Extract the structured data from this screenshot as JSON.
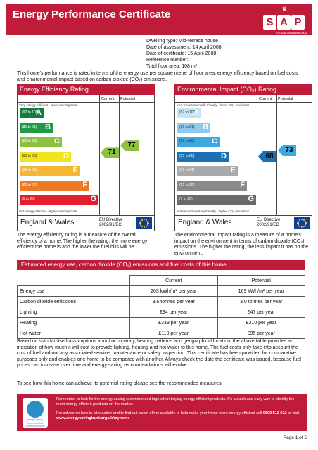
{
  "header": {
    "title": "Energy Performance Certificate",
    "logo_letters": [
      "S",
      "A",
      "P"
    ],
    "crown": "♛",
    "copyright": "© Crown copyright 2003"
  },
  "property": {
    "dwelling_type": "Dwelling type: Mid-terrace house",
    "assessment_date": "Date of assessment: 14 April 2008",
    "certificate_date": "Date of certificate: 15 April 2008",
    "reference": "Reference number:",
    "floor_area": "Total floor area: 108 m²"
  },
  "intro": "This home's performance is rated in terms of the energy use per square metre of floor area, energy efficiency based on fuel costs and environmental impact based on carbon dioxide (CO₂) emissions.",
  "efficiency": {
    "title": "Energy Efficiency Rating",
    "col_current": "Current",
    "col_potential": "Potential",
    "top_note": "Very energy efficient - lower running costs",
    "bottom_note": "Not energy efficient - higher running costs",
    "bands": [
      {
        "range": "(92 to 100)",
        "letter": "A",
        "color": "#0f7b3e"
      },
      {
        "range": "(81 to 91)",
        "letter": "B",
        "color": "#1e9b44"
      },
      {
        "range": "(69 to 80)",
        "letter": "C",
        "color": "#8dc23f"
      },
      {
        "range": "(55 to 68)",
        "letter": "D",
        "color": "#f0e51a"
      },
      {
        "range": "(39 to 54)",
        "letter": "E",
        "color": "#f6b533"
      },
      {
        "range": "(21 to 38)",
        "letter": "F",
        "color": "#ec7b25"
      },
      {
        "range": "(1 to 20)",
        "letter": "G",
        "color": "#e31d2d"
      }
    ],
    "current": 71,
    "potential": 77,
    "current_color": "#8dc23f",
    "potential_color": "#8dc23f",
    "region": "England & Wales",
    "directive": "EU Directive",
    "directive_code": "2002/91/EC",
    "description": "The energy efficiency rating is a measure of the overall efficiency of a home. The higher the rating, the more energy efficient the home is and the lower the fuel bills will be."
  },
  "environment": {
    "title": "Environmental Impact (CO₂) Rating",
    "col_current": "Current",
    "col_potential": "Potential",
    "top_note": "Very environmentally friendly - lower CO₂ emissions",
    "bottom_note": "Not environmentally friendly - higher CO₂ emissions",
    "bands": [
      {
        "range": "(92 to 100)",
        "letter": "A",
        "color": "#c5e4f6"
      },
      {
        "range": "(81 to 91)",
        "letter": "B",
        "color": "#8fc9ec"
      },
      {
        "range": "(69 to 80)",
        "letter": "C",
        "color": "#3ea8e0"
      },
      {
        "range": "(55 to 68)",
        "letter": "D",
        "color": "#1a72b4"
      },
      {
        "range": "(39 to 54)",
        "letter": "E",
        "color": "#a9a9a9"
      },
      {
        "range": "(21 to 38)",
        "letter": "F",
        "color": "#8a8a8a"
      },
      {
        "range": "(1 to 20)",
        "letter": "G",
        "color": "#6a6a6a"
      }
    ],
    "current": 68,
    "potential": 73,
    "current_color": "#1a72b4",
    "potential_color": "#3ea8e0",
    "region": "England & Wales",
    "directive": "EU Directive",
    "directive_code": "2002/91/EC",
    "description": "The environmental impact rating is a measure of a home's impact on the environment in terms of carbon dioxide (CO₂) emissions. The higher the rating, the less impact it has on the environment."
  },
  "costs": {
    "title": "Estimated energy use, carbon dioxide (CO₂) emissions and fuel costs of this home",
    "col_current": "Current",
    "col_potential": "Potential",
    "rows": [
      {
        "label": "Energy use",
        "current": "203 kWh/m² per year",
        "potential": "169 kWh/m² per year"
      },
      {
        "label": "Carbon dioxide emissions",
        "current": "3.6 tonnes per year",
        "potential": "3.0 tonnes per year"
      },
      {
        "label": "Lighting",
        "current": "£94 per year",
        "potential": "£47 per year"
      },
      {
        "label": "Heating",
        "current": "£339 per year",
        "potential": "£310 per year"
      },
      {
        "label": "Hot water",
        "current": "£110 per year",
        "potential": "£95 per year"
      }
    ]
  },
  "basis": "Based on standardised assumptions about occupancy, heating patterns and geographical location, the above table provides an indication of how much it will cost to provide lighting, heating and hot water to this home. The fuel costs only take into account the cost of fuel and not any associated service, maintenance or safety inspection. This certificate has been provided for comparative purposes only and enables one home to be compared with another. Always check the date the certificate was issued, because fuel prices can increase over time and energy saving recommendations will evolve.",
  "to_see": "To see how this home can achieve its potential rating please see the recommended measures.",
  "advice": {
    "badge_line1": "energy saving",
    "badge_line2": "recommended",
    "badge_line3": "Certification mark",
    "p1": "Remember to look for the energy saving recommended logo when buying energy efficient products. It's a quick and easy way to identify the most energy efficient products on the market.",
    "p2_pre": "For advice on how to take action and to find out about offers available to help make your home more energy efficient call ",
    "p2_phone": "0800 512 012",
    "p2_mid": " or visit ",
    "p2_url": "www.energysavingtrust.org.uk/myhome"
  },
  "page": "Page 1 of 5"
}
